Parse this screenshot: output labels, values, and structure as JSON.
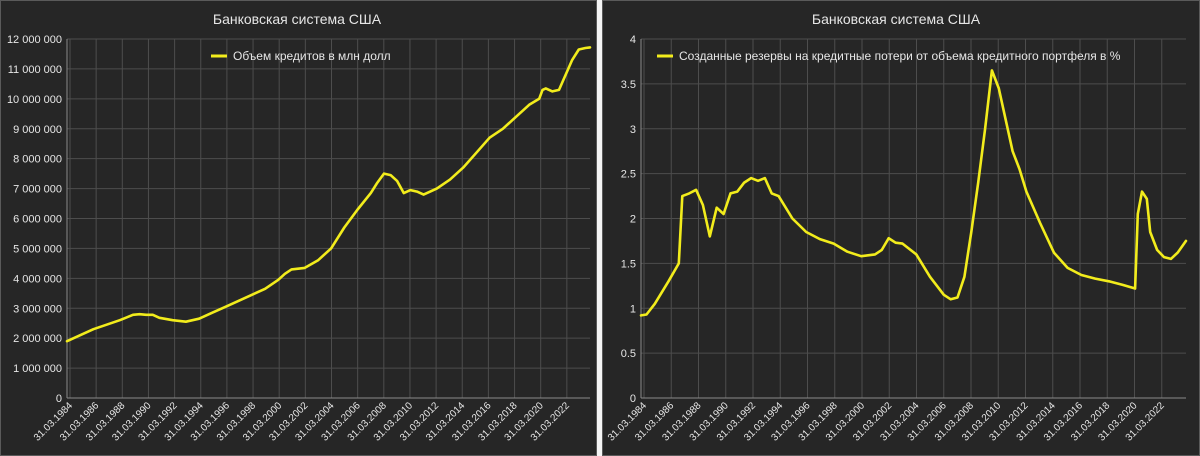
{
  "chart_data": [
    {
      "type": "line",
      "title": "Банковская система США",
      "legend": "Объем кредитов в млн долл",
      "legend_position": "top",
      "grid": true,
      "line_color": "#f2ec1c",
      "ylim": [
        0,
        12000000
      ],
      "yticks": [
        "0",
        "1 000 000",
        "2 000 000",
        "3 000 000",
        "4 000 000",
        "5 000 000",
        "6 000 000",
        "7 000 000",
        "8 000 000",
        "9 000 000",
        "10 000 000",
        "11 000 000",
        "12 000 000"
      ],
      "xticks": [
        "31.03.1984",
        "31.03.1986",
        "31.03.1988",
        "31.03.1990",
        "31.03.1992",
        "31.03.1994",
        "31.03.1996",
        "31.03.1998",
        "31.03.2000",
        "31.03.2002",
        "31.03.2004",
        "31.03.2006",
        "31.03.2008",
        "31.03.2010",
        "31.03.2012",
        "31.03.2014",
        "31.03.2016",
        "31.03.2018",
        "31.03.2020",
        "31.03.2022"
      ],
      "xlim": [
        1984.0,
        2023.6
      ],
      "x": [
        1984.0,
        1985.0,
        1986.0,
        1987.0,
        1988.0,
        1989.0,
        1989.5,
        1990.0,
        1990.5,
        1991.0,
        1992.0,
        1993.0,
        1994.0,
        1995.0,
        1996.0,
        1997.0,
        1998.0,
        1999.0,
        2000.0,
        2000.5,
        2001.0,
        2002.0,
        2003.0,
        2004.0,
        2005.0,
        2006.0,
        2007.0,
        2007.5,
        2008.0,
        2008.5,
        2009.0,
        2009.5,
        2010.0,
        2010.5,
        2011.0,
        2011.5,
        2012.0,
        2013.0,
        2014.0,
        2015.0,
        2016.0,
        2017.0,
        2018.0,
        2019.0,
        2019.75,
        2020.0,
        2020.25,
        2020.75,
        2021.25,
        2021.75,
        2022.25,
        2022.75,
        2023.25,
        2023.6
      ],
      "values": [
        1900000,
        2100000,
        2300000,
        2450000,
        2600000,
        2780000,
        2800000,
        2780000,
        2780000,
        2680000,
        2600000,
        2550000,
        2650000,
        2850000,
        3050000,
        3250000,
        3450000,
        3650000,
        3950000,
        4150000,
        4300000,
        4350000,
        4600000,
        5000000,
        5700000,
        6300000,
        6850000,
        7200000,
        7500000,
        7450000,
        7250000,
        6850000,
        6950000,
        6900000,
        6800000,
        6900000,
        7000000,
        7300000,
        7700000,
        8200000,
        8700000,
        9000000,
        9400000,
        9800000,
        10000000,
        10300000,
        10350000,
        10250000,
        10300000,
        10800000,
        11300000,
        11650000,
        11700000,
        11720000
      ]
    },
    {
      "type": "line",
      "title": "Банковская система США",
      "legend": "Созданные резервы на кредитные потери от объема кредитного портфеля в %",
      "legend_position": "top",
      "grid": true,
      "line_color": "#f2ec1c",
      "ylim": [
        0,
        4
      ],
      "yticks": [
        "0",
        "0.5",
        "1",
        "1.5",
        "2",
        "2.5",
        "3",
        "3.5",
        "4"
      ],
      "xticks": [
        "31.03.1984",
        "31.03.1986",
        "31.03.1988",
        "31.03.1990",
        "31.03.1992",
        "31.03.1994",
        "31.03.1996",
        "31.03.1998",
        "31.03.2000",
        "31.03.2002",
        "31.03.2004",
        "31.03.2006",
        "31.03.2008",
        "31.03.2010",
        "31.03.2012",
        "31.03.2014",
        "31.03.2016",
        "31.03.2018",
        "31.03.2020",
        "31.03.2022"
      ],
      "xlim": [
        1984.0,
        2023.6
      ],
      "x": [
        1984.0,
        1984.4,
        1985.0,
        1986.0,
        1986.75,
        1987.0,
        1987.5,
        1988.0,
        1988.5,
        1989.0,
        1989.5,
        1990.0,
        1990.5,
        1991.0,
        1991.5,
        1992.0,
        1992.5,
        1993.0,
        1993.5,
        1994.0,
        1995.0,
        1996.0,
        1997.0,
        1998.0,
        1999.0,
        2000.0,
        2001.0,
        2001.5,
        2002.0,
        2002.5,
        2003.0,
        2004.0,
        2005.0,
        2006.0,
        2006.5,
        2007.0,
        2007.5,
        2008.0,
        2008.5,
        2009.0,
        2009.5,
        2010.0,
        2010.5,
        2011.0,
        2011.5,
        2012.0,
        2013.0,
        2014.0,
        2015.0,
        2016.0,
        2017.0,
        2018.0,
        2019.0,
        2019.9,
        2020.1,
        2020.4,
        2020.75,
        2021.0,
        2021.5,
        2022.0,
        2022.5,
        2023.0,
        2023.6
      ],
      "values": [
        0.92,
        0.93,
        1.05,
        1.3,
        1.5,
        2.25,
        2.28,
        2.32,
        2.15,
        1.8,
        2.12,
        2.05,
        2.28,
        2.3,
        2.4,
        2.45,
        2.42,
        2.45,
        2.28,
        2.25,
        2.0,
        1.85,
        1.77,
        1.72,
        1.63,
        1.58,
        1.6,
        1.65,
        1.78,
        1.73,
        1.72,
        1.6,
        1.35,
        1.15,
        1.1,
        1.12,
        1.35,
        1.85,
        2.4,
        3.0,
        3.65,
        3.45,
        3.1,
        2.75,
        2.55,
        2.3,
        1.95,
        1.62,
        1.45,
        1.37,
        1.33,
        1.3,
        1.26,
        1.22,
        2.05,
        2.3,
        2.22,
        1.85,
        1.65,
        1.57,
        1.55,
        1.62,
        1.75
      ]
    }
  ]
}
